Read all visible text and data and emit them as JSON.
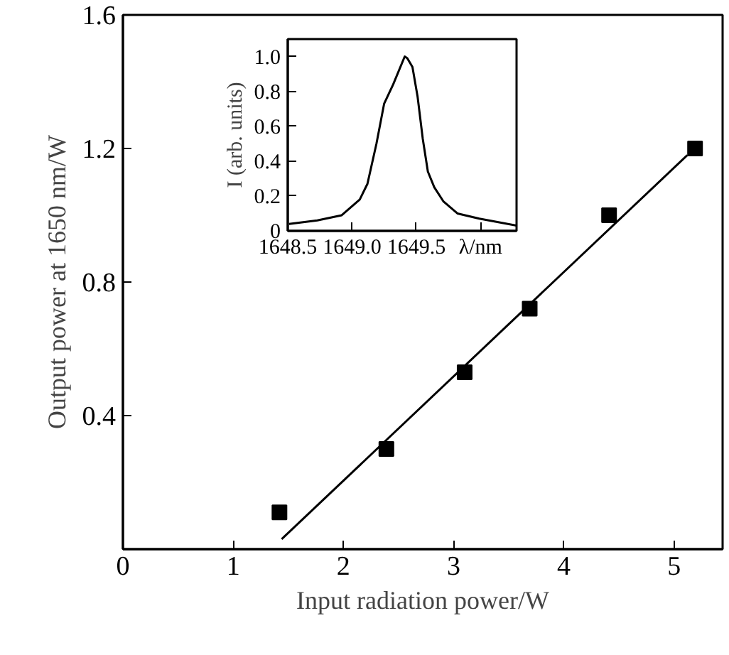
{
  "chart_data": [
    {
      "type": "scatter",
      "xlabel": "Input radiation power/W",
      "ylabel": "Output power at 1650 nm/W",
      "xlim": [
        0,
        5.44
      ],
      "ylim": [
        0,
        1.6
      ],
      "xticks": [
        0,
        1,
        2,
        3,
        4,
        5
      ],
      "yticks": [
        0.4,
        0.8,
        1.2,
        1.6
      ],
      "grid": false,
      "series": [
        {
          "type": "scatter",
          "marker": "square",
          "color": "#000000",
          "x": [
            1.42,
            2.39,
            3.1,
            3.69,
            4.41,
            5.19
          ],
          "values": [
            0.11,
            0.3,
            0.53,
            0.72,
            1.0,
            1.2
          ]
        },
        {
          "type": "line",
          "marker": "none",
          "color": "#000000",
          "x": [
            1.44,
            5.12
          ],
          "values": [
            0.03,
            1.18
          ]
        }
      ]
    },
    {
      "type": "line",
      "ylabel": "I (arb. units)",
      "xlim": [
        1648.5,
        1650.28
      ],
      "ylim": [
        0,
        1.1
      ],
      "xticks": [
        1648.5,
        {
          "value": 1649.0,
          "label": "1649.0"
        },
        1649.5,
        {
          "value": 1650.0,
          "label": "λ/nm"
        }
      ],
      "yticks": [
        0,
        0.2,
        0.4,
        0.6,
        0.8,
        {
          "value": 1.0,
          "label": "1.0"
        }
      ],
      "grid": false,
      "series": [
        {
          "color": "#000000",
          "x": [
            1648.51,
            1648.73,
            1648.92,
            1649.06,
            1649.12,
            1649.19,
            1649.25,
            1649.32,
            1649.41,
            1649.43,
            1649.47,
            1649.51,
            1649.55,
            1649.59,
            1649.64,
            1649.71,
            1649.82,
            1649.99,
            1650.28
          ],
          "values": [
            0.04,
            0.06,
            0.09,
            0.18,
            0.27,
            0.5,
            0.73,
            0.84,
            1.0,
            0.99,
            0.94,
            0.77,
            0.53,
            0.34,
            0.25,
            0.17,
            0.1,
            0.07,
            0.03
          ]
        }
      ]
    }
  ]
}
